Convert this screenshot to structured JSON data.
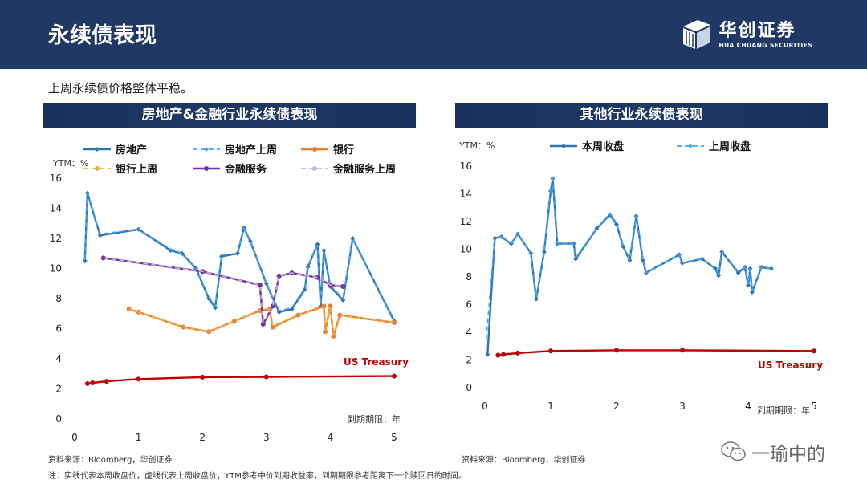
{
  "header": {
    "title": "永续债表现"
  },
  "logo": {
    "cn": "华创证券",
    "en": "HUA CHUANG SECURITIES"
  },
  "summary": "上周永续债价格整体平稳。",
  "footnote": "注：实线代表本周收盘价，虚线代表上周收盘价，YTM参考中价到期收益率，到期期限参考距离下一个赎回日的时间。",
  "watermark": "一瑜中的",
  "colors": {
    "header_bg": "#1f3864",
    "realestate": "#2e75b6",
    "realestate_prev": "#41a6f0",
    "bank": "#ed7d31",
    "bank_prev": "#f2b134",
    "finance": "#7030a0",
    "finance_prev": "#c9b5dc",
    "treasury": "#c00000"
  },
  "chart_data": [
    {
      "type": "line",
      "title": "房地产&金融行业永续债表现",
      "ylabel": "YTM：%",
      "xlabel": "到期期限：年",
      "xlim": [
        0,
        5
      ],
      "ylim": [
        0,
        16
      ],
      "xticks": [
        "0",
        "1",
        "2",
        "3",
        "4",
        "5"
      ],
      "yticks": [
        "0",
        "2",
        "4",
        "6",
        "8",
        "10",
        "12",
        "14",
        "16"
      ],
      "treasury_label": "US Treasury",
      "source": "资料来源：Bloomberg，华创证券",
      "legend": [
        "房地产",
        "房地产上周",
        "银行",
        "银行上周",
        "金融服务",
        "金融服务上周"
      ],
      "series": [
        {
          "name": "房地产",
          "style": "solid",
          "marker": "diamond",
          "color": "#2e75b6",
          "points": [
            [
              0.16,
              10.5
            ],
            [
              0.2,
              15.0
            ],
            [
              0.4,
              12.2
            ],
            [
              1.0,
              12.6
            ],
            [
              1.5,
              11.2
            ],
            [
              1.68,
              11.0
            ],
            [
              1.9,
              10.0
            ],
            [
              2.1,
              8.0
            ],
            [
              2.2,
              7.4
            ],
            [
              2.3,
              10.8
            ],
            [
              2.55,
              11.0
            ],
            [
              2.65,
              12.7
            ],
            [
              2.75,
              11.8
            ],
            [
              3.0,
              9.0
            ],
            [
              3.2,
              7.1
            ],
            [
              3.4,
              7.3
            ],
            [
              3.6,
              8.6
            ],
            [
              3.65,
              10.1
            ],
            [
              3.8,
              11.6
            ],
            [
              3.85,
              7.5
            ],
            [
              3.9,
              11.2
            ],
            [
              4.0,
              8.8
            ],
            [
              4.2,
              7.9
            ],
            [
              4.35,
              12.0
            ],
            [
              5.0,
              6.5
            ]
          ]
        },
        {
          "name": "房地产上周",
          "style": "dashed",
          "marker": "diamond",
          "color": "#41a6f0",
          "points": [
            [
              0.16,
              10.6
            ],
            [
              0.2,
              15.0
            ],
            [
              0.4,
              12.3
            ],
            [
              1.0,
              12.6
            ],
            [
              1.5,
              11.3
            ],
            [
              1.68,
              11.0
            ],
            [
              1.9,
              10.0
            ],
            [
              2.1,
              8.1
            ],
            [
              2.2,
              7.5
            ],
            [
              2.3,
              10.9
            ],
            [
              2.55,
              11.0
            ],
            [
              2.65,
              12.7
            ],
            [
              2.75,
              11.8
            ],
            [
              3.0,
              9.0
            ],
            [
              3.2,
              7.2
            ],
            [
              3.4,
              7.4
            ],
            [
              3.6,
              8.7
            ],
            [
              3.65,
              10.2
            ],
            [
              3.8,
              11.5
            ],
            [
              3.85,
              7.6
            ],
            [
              3.9,
              11.2
            ],
            [
              4.0,
              8.9
            ],
            [
              4.2,
              8.0
            ],
            [
              4.35,
              12.0
            ],
            [
              5.0,
              6.6
            ]
          ]
        },
        {
          "name": "银行",
          "style": "solid",
          "marker": "dot",
          "color": "#ed7d31",
          "points": [
            [
              0.85,
              7.3
            ],
            [
              1.0,
              7.1
            ],
            [
              1.7,
              6.1
            ],
            [
              2.1,
              5.8
            ],
            [
              2.5,
              6.5
            ],
            [
              2.9,
              7.2
            ],
            [
              3.05,
              7.3
            ],
            [
              3.1,
              6.1
            ],
            [
              3.5,
              6.9
            ],
            [
              3.9,
              7.5
            ],
            [
              3.92,
              5.8
            ],
            [
              4.0,
              7.5
            ],
            [
              4.05,
              5.5
            ],
            [
              4.15,
              6.9
            ],
            [
              5.0,
              6.4
            ]
          ]
        },
        {
          "name": "银行上周",
          "style": "dashed",
          "marker": "dot",
          "color": "#f2b134",
          "points": [
            [
              0.85,
              7.3
            ],
            [
              1.0,
              7.1
            ],
            [
              1.7,
              6.1
            ],
            [
              2.1,
              5.8
            ],
            [
              2.5,
              6.5
            ],
            [
              2.9,
              7.2
            ],
            [
              3.05,
              7.3
            ],
            [
              3.1,
              6.2
            ],
            [
              3.5,
              6.9
            ],
            [
              3.9,
              7.4
            ],
            [
              3.92,
              5.9
            ],
            [
              4.0,
              7.4
            ],
            [
              4.05,
              5.6
            ],
            [
              4.15,
              6.9
            ],
            [
              5.0,
              6.4
            ]
          ]
        },
        {
          "name": "金融服务",
          "style": "solid",
          "marker": "dot",
          "color": "#7030a0",
          "points": [
            [
              0.45,
              10.7
            ],
            [
              2.0,
              9.8
            ],
            [
              2.9,
              8.9
            ],
            [
              2.95,
              6.3
            ],
            [
              3.1,
              7.5
            ],
            [
              3.2,
              9.5
            ],
            [
              3.4,
              9.7
            ],
            [
              3.8,
              9.4
            ],
            [
              4.0,
              8.9
            ],
            [
              4.2,
              8.8
            ]
          ]
        },
        {
          "name": "金融服务上周",
          "style": "dashed",
          "marker": "dot",
          "color": "#c9b5dc",
          "points": [
            [
              0.45,
              10.7
            ],
            [
              2.0,
              9.8
            ],
            [
              2.9,
              8.9
            ],
            [
              2.95,
              6.4
            ],
            [
              3.1,
              7.5
            ],
            [
              3.2,
              9.5
            ],
            [
              3.4,
              9.7
            ],
            [
              3.8,
              9.4
            ],
            [
              4.0,
              8.9
            ],
            [
              4.2,
              8.8
            ]
          ]
        },
        {
          "name": "US Treasury",
          "style": "solid",
          "marker": "dot",
          "color": "#c00000",
          "points": [
            [
              0.2,
              2.35
            ],
            [
              0.28,
              2.4
            ],
            [
              0.5,
              2.5
            ],
            [
              1.0,
              2.65
            ],
            [
              2.0,
              2.78
            ],
            [
              3.0,
              2.8
            ],
            [
              5.0,
              2.85
            ]
          ]
        }
      ]
    },
    {
      "type": "line",
      "title": "其他行业永续债表现",
      "ylabel": "YTM：%",
      "xlabel": "到期期限：年",
      "xlim": [
        0,
        5
      ],
      "ylim": [
        0,
        16
      ],
      "xticks": [
        "0",
        "1",
        "2",
        "3",
        "4",
        "5"
      ],
      "yticks": [
        "0",
        "2",
        "4",
        "6",
        "8",
        "10",
        "12",
        "14",
        "16"
      ],
      "treasury_label": "US Treasury",
      "source": "资料来源：Bloomberg，华创证券",
      "legend": [
        "本周收盘",
        "上周收盘"
      ],
      "series": [
        {
          "name": "本周收盘",
          "style": "solid",
          "marker": "diamond",
          "color": "#2e75b6",
          "points": [
            [
              0.04,
              2.4
            ],
            [
              0.15,
              10.8
            ],
            [
              0.25,
              10.9
            ],
            [
              0.4,
              10.4
            ],
            [
              0.5,
              11.1
            ],
            [
              0.7,
              9.7
            ],
            [
              0.78,
              6.4
            ],
            [
              0.9,
              9.8
            ],
            [
              1.0,
              14.2
            ],
            [
              1.03,
              15.1
            ],
            [
              1.1,
              10.4
            ],
            [
              1.35,
              10.4
            ],
            [
              1.38,
              9.3
            ],
            [
              1.7,
              11.5
            ],
            [
              1.9,
              12.5
            ],
            [
              2.0,
              11.8
            ],
            [
              2.1,
              10.2
            ],
            [
              2.2,
              9.2
            ],
            [
              2.3,
              12.4
            ],
            [
              2.4,
              9.2
            ],
            [
              2.45,
              8.3
            ],
            [
              2.95,
              9.6
            ],
            [
              3.0,
              9.0
            ],
            [
              3.3,
              9.3
            ],
            [
              3.5,
              8.6
            ],
            [
              3.55,
              8.1
            ],
            [
              3.6,
              9.8
            ],
            [
              3.85,
              8.3
            ],
            [
              3.95,
              8.7
            ],
            [
              4.0,
              7.4
            ],
            [
              4.03,
              8.6
            ],
            [
              4.06,
              6.9
            ],
            [
              4.2,
              8.7
            ],
            [
              4.35,
              8.6
            ]
          ]
        },
        {
          "name": "上周收盘",
          "style": "dashed",
          "marker": "diamond",
          "color": "#41a6f0",
          "points": [
            [
              0.02,
              3.5
            ],
            [
              0.15,
              10.8
            ],
            [
              0.25,
              10.9
            ],
            [
              0.4,
              10.4
            ],
            [
              0.5,
              11.1
            ],
            [
              0.7,
              9.7
            ],
            [
              0.78,
              6.5
            ],
            [
              0.9,
              9.8
            ],
            [
              1.0,
              14.3
            ],
            [
              1.03,
              15.2
            ],
            [
              1.1,
              10.4
            ],
            [
              1.35,
              10.4
            ],
            [
              1.38,
              9.4
            ],
            [
              1.7,
              11.5
            ],
            [
              1.9,
              12.6
            ],
            [
              2.0,
              11.9
            ],
            [
              2.1,
              10.2
            ],
            [
              2.2,
              9.2
            ],
            [
              2.3,
              12.4
            ],
            [
              2.4,
              9.3
            ],
            [
              2.45,
              8.3
            ],
            [
              2.95,
              9.6
            ],
            [
              3.0,
              9.0
            ],
            [
              3.3,
              9.3
            ],
            [
              3.5,
              8.6
            ],
            [
              3.55,
              8.2
            ],
            [
              3.6,
              9.8
            ],
            [
              3.85,
              8.4
            ],
            [
              3.95,
              8.7
            ],
            [
              4.0,
              7.5
            ],
            [
              4.03,
              8.6
            ],
            [
              4.06,
              7.0
            ],
            [
              4.2,
              8.7
            ],
            [
              4.35,
              8.6
            ]
          ]
        },
        {
          "name": "US Treasury",
          "style": "solid",
          "marker": "dot",
          "color": "#c00000",
          "points": [
            [
              0.2,
              2.35
            ],
            [
              0.28,
              2.4
            ],
            [
              0.5,
              2.5
            ],
            [
              1.0,
              2.65
            ],
            [
              2.0,
              2.7
            ],
            [
              3.0,
              2.7
            ],
            [
              5.0,
              2.65
            ]
          ]
        }
      ]
    }
  ]
}
